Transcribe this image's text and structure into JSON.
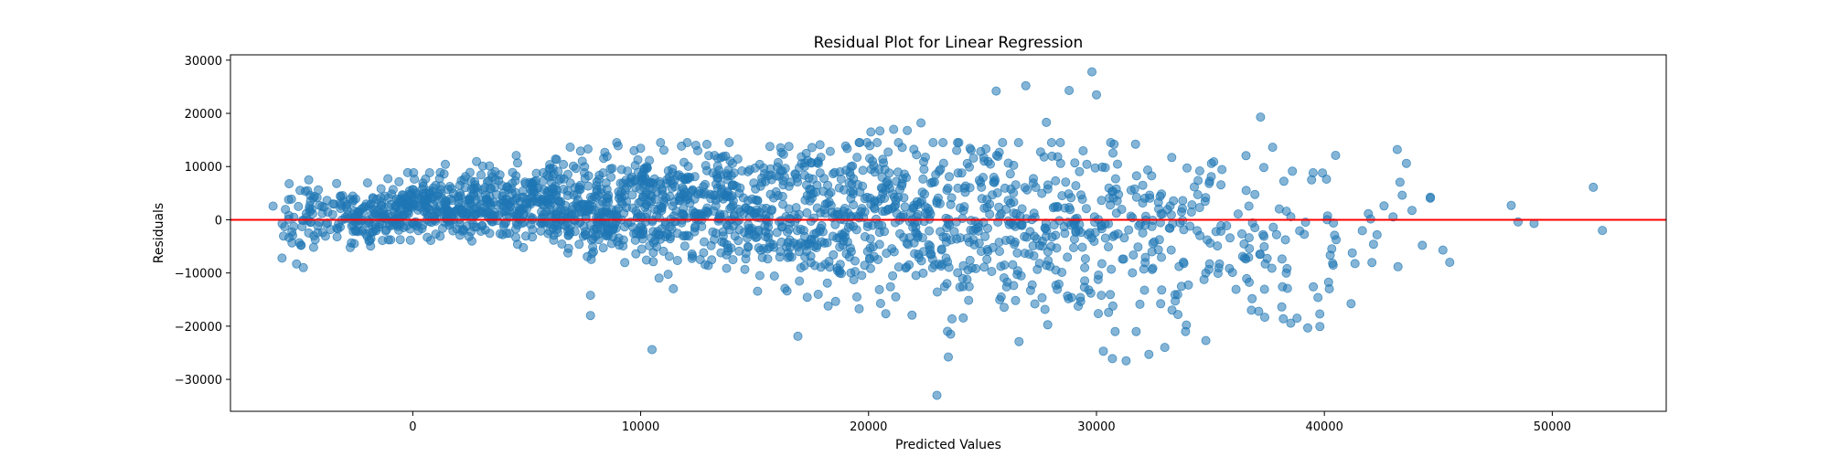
{
  "chart_data": {
    "type": "scatter",
    "title": "Residual Plot for Linear Regression",
    "xlabel": "Predicted Values",
    "ylabel": "Residuals",
    "xlim": [
      -8000,
      55000
    ],
    "ylim": [
      -36000,
      31000
    ],
    "xticks": [
      0,
      10000,
      20000,
      30000,
      40000,
      50000
    ],
    "xtick_labels": [
      "0",
      "10000",
      "20000",
      "30000",
      "40000",
      "50000"
    ],
    "yticks": [
      -30000,
      -20000,
      -10000,
      0,
      10000,
      20000,
      30000
    ],
    "ytick_labels": [
      "−30000",
      "−20000",
      "−10000",
      "0",
      "10000",
      "20000",
      "30000"
    ],
    "grid": false,
    "reference_line": {
      "y": 0,
      "color": "#ff0000"
    },
    "point_color": "#1f77b4",
    "point_alpha": 0.55,
    "outliers": [
      {
        "x": 23000,
        "y": -33000
      },
      {
        "x": 29800,
        "y": 27800
      },
      {
        "x": 30000,
        "y": 23500
      },
      {
        "x": 25600,
        "y": 24200
      },
      {
        "x": 26900,
        "y": 25200
      },
      {
        "x": 28800,
        "y": 24300
      },
      {
        "x": 27800,
        "y": 18300
      },
      {
        "x": 22300,
        "y": 18200
      },
      {
        "x": 37200,
        "y": 19300
      },
      {
        "x": 10500,
        "y": -24400
      },
      {
        "x": 23500,
        "y": -25800
      },
      {
        "x": 23600,
        "y": -21500
      },
      {
        "x": 26600,
        "y": -22900
      },
      {
        "x": 30700,
        "y": -26100
      },
      {
        "x": 31300,
        "y": -26500
      },
      {
        "x": 32300,
        "y": -25300
      },
      {
        "x": 33000,
        "y": -24000
      },
      {
        "x": 30300,
        "y": -24700
      },
      {
        "x": 34800,
        "y": -22700
      },
      {
        "x": 7800,
        "y": -18000
      },
      {
        "x": 7800,
        "y": -14200
      },
      {
        "x": 16900,
        "y": -21900
      },
      {
        "x": 48200,
        "y": 2700
      },
      {
        "x": 48500,
        "y": -400
      },
      {
        "x": 49200,
        "y": -700
      },
      {
        "x": 51800,
        "y": 6100
      },
      {
        "x": 52200,
        "y": -2000
      },
      {
        "x": 43200,
        "y": 13200
      },
      {
        "x": 43600,
        "y": 10600
      },
      {
        "x": 45200,
        "y": -5700
      },
      {
        "x": 45500,
        "y": -8000
      },
      {
        "x": 44300,
        "y": -4800
      },
      {
        "x": -5100,
        "y": -8300
      },
      {
        "x": -4800,
        "y": -9000
      },
      {
        "x": 38200,
        "y": -18600
      },
      {
        "x": 38800,
        "y": -18500
      },
      {
        "x": 39800,
        "y": -17700
      },
      {
        "x": 36800,
        "y": -17000
      },
      {
        "x": 20100,
        "y": 16500
      },
      {
        "x": 20500,
        "y": 16700
      },
      {
        "x": 21700,
        "y": 16800
      },
      {
        "x": 21100,
        "y": 17000
      }
    ],
    "cloud": [
      [
        -5500,
        200,
        6000
      ],
      [
        -4000,
        500,
        5000
      ],
      [
        -2500,
        900,
        5000
      ],
      [
        -1000,
        1600,
        5000
      ],
      [
        500,
        2300,
        5000
      ],
      [
        2000,
        2700,
        5500
      ],
      [
        3500,
        3100,
        6000
      ],
      [
        5000,
        3300,
        6500
      ],
      [
        6500,
        3200,
        7000
      ],
      [
        8000,
        3000,
        8000
      ],
      [
        9500,
        2700,
        9000
      ],
      [
        11000,
        2200,
        10000
      ],
      [
        12500,
        1900,
        10500
      ],
      [
        14000,
        1700,
        11000
      ],
      [
        15500,
        1400,
        11500
      ],
      [
        17000,
        1100,
        12000
      ],
      [
        18500,
        900,
        12500
      ],
      [
        20000,
        500,
        13000
      ],
      [
        21500,
        200,
        13500
      ],
      [
        23000,
        -200,
        14000
      ],
      [
        24500,
        -600,
        14500
      ],
      [
        26000,
        -1000,
        15000
      ],
      [
        27500,
        -1400,
        15000
      ],
      [
        29000,
        -1800,
        15000
      ],
      [
        30500,
        -2200,
        15000
      ],
      [
        32000,
        -2600,
        15000
      ],
      [
        33500,
        -3000,
        14500
      ],
      [
        35000,
        -3300,
        14000
      ],
      [
        36500,
        -3300,
        14000
      ],
      [
        38000,
        -3000,
        14000
      ],
      [
        39500,
        -2500,
        14000
      ],
      [
        41000,
        -1800,
        12000
      ],
      [
        42500,
        -1000,
        11000
      ],
      [
        44000,
        -500,
        9000
      ]
    ],
    "cloud_counts": [
      25,
      45,
      70,
      90,
      100,
      100,
      90,
      95,
      110,
      115,
      105,
      95,
      95,
      100,
      90,
      90,
      90,
      80,
      75,
      70,
      70,
      65,
      55,
      55,
      50,
      40,
      40,
      30,
      25,
      25,
      15,
      12,
      8,
      5
    ]
  }
}
